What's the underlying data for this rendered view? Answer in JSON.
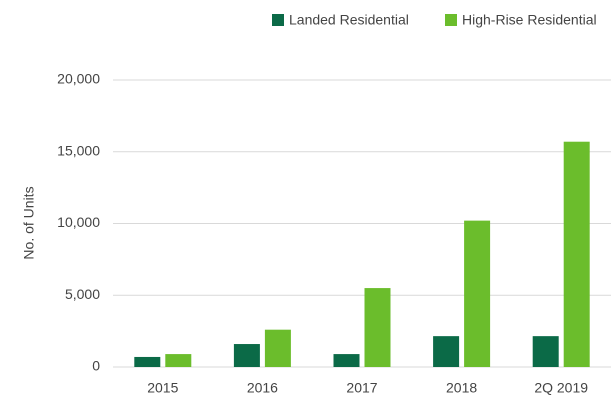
{
  "chart_data": {
    "type": "bar",
    "y_label": "No. of Units",
    "categories": [
      "2015",
      "2016",
      "2017",
      "2018",
      "2Q 2019"
    ],
    "series": [
      {
        "name": "Landed Residential",
        "color": "#0b6a47",
        "values": [
          700,
          1600,
          900,
          2150,
          2150
        ]
      },
      {
        "name": "High-Rise Residential",
        "color": "#6bbd2c",
        "values": [
          900,
          2600,
          5500,
          10200,
          15700
        ]
      }
    ],
    "ylim": [
      0,
      20000
    ],
    "yticks": [
      0,
      {
        "value": 5000,
        "label": "5,000"
      },
      {
        "value": 10000,
        "label": "10,000"
      },
      {
        "value": 15000,
        "label": "15,000"
      },
      {
        "value": 20000,
        "label": "20,000"
      }
    ],
    "grid": true,
    "legend": "top"
  }
}
